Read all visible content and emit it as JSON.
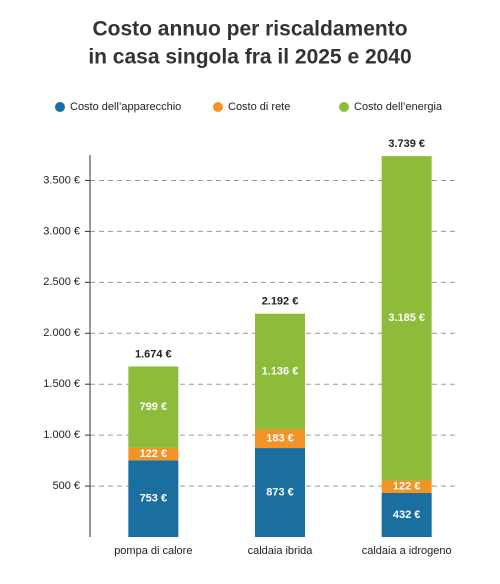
{
  "chart_data": {
    "type": "stacked-bar",
    "title": [
      "Costo annuo per riscaldamento",
      "in casa singola fra il 2025 e 2040"
    ],
    "categories": [
      "pompa di calore",
      "caldaia ibrida",
      "caldaia a idrogeno"
    ],
    "series": [
      {
        "name": "Costo dell’apparecchio",
        "color": "#1a6ea0",
        "values": [
          753,
          873,
          432
        ],
        "value_labels": [
          "753 €",
          "873 €",
          "432 €"
        ]
      },
      {
        "name": "Costo di rete",
        "color": "#f39325",
        "values": [
          122,
          183,
          122
        ],
        "value_labels": [
          "122 €",
          "183 €",
          "122 €"
        ]
      },
      {
        "name": "Costo dell’energia",
        "color": "#8dbb3a",
        "values": [
          799,
          1136,
          3185
        ],
        "value_labels": [
          "799 €",
          "1.136 €",
          "3.185 €"
        ]
      }
    ],
    "totals": {
      "color": "#e3001b",
      "values": [
        1674,
        2192,
        3739
      ],
      "value_labels": [
        "1.674 €",
        "2.192 €",
        "3.739 €"
      ]
    },
    "ylim": [
      0,
      3750
    ],
    "yticks": [
      {
        "value": 500,
        "label": "500 €"
      },
      {
        "value": 1000,
        "label": "1.000 €"
      },
      {
        "value": 1500,
        "label": "1.500 €"
      },
      {
        "value": 2000,
        "label": "2.000 €"
      },
      {
        "value": 2500,
        "label": "2.500 €"
      },
      {
        "value": 3000,
        "label": "3.000 €"
      },
      {
        "value": 3500,
        "label": "3.500 €"
      }
    ],
    "grid": true
  }
}
